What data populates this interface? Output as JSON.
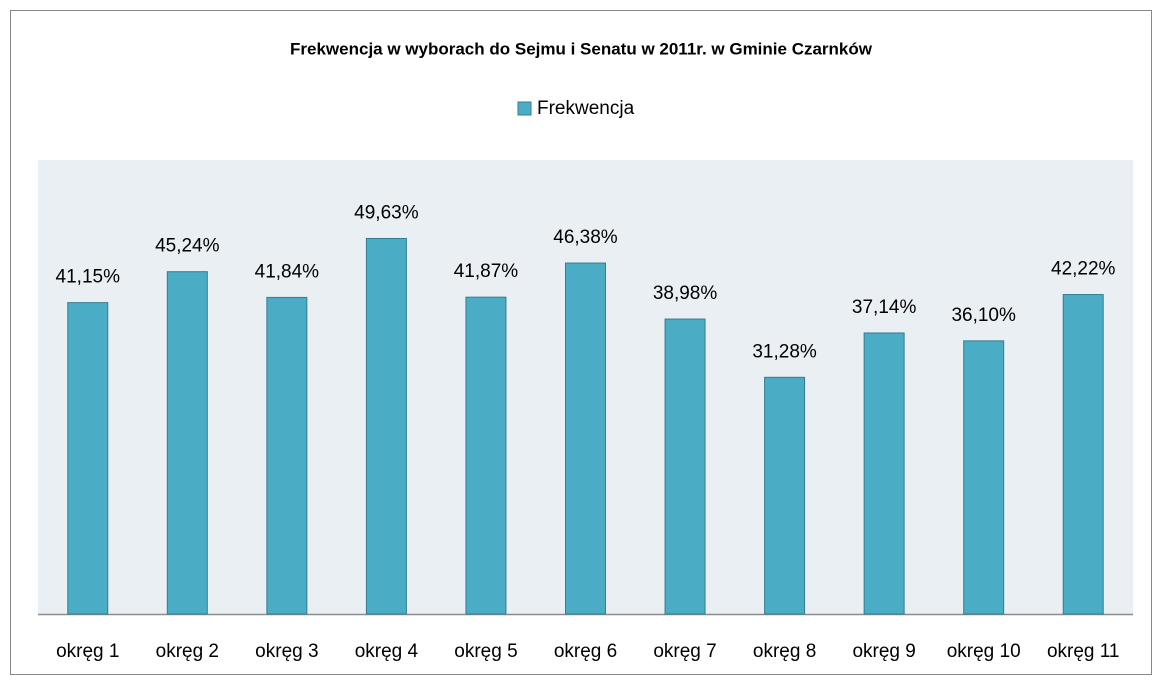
{
  "chart_data": {
    "type": "bar",
    "title": "Frekwencja w wyborach do Sejmu i Senatu w 2011r. w Gminie Czarnków",
    "categories": [
      "okręg 1",
      "okręg 2",
      "okręg 3",
      "okręg 4",
      "okręg 5",
      "okręg 6",
      "okręg 7",
      "okręg 8",
      "okręg 9",
      "okręg 10",
      "okręg 11"
    ],
    "series": [
      {
        "name": "Frekwencja",
        "color": "#4bacc6",
        "values": [
          41.15,
          45.24,
          41.84,
          49.63,
          41.87,
          46.38,
          38.98,
          31.28,
          37.14,
          36.1,
          42.22
        ],
        "value_labels": [
          "41,15%",
          "45,24%",
          "41,84%",
          "49,63%",
          "41,87%",
          "46,38%",
          "38,98%",
          "31,28%",
          "37,14%",
          "36,10%",
          "42,22%"
        ]
      }
    ],
    "ylim": [
      0,
      60
    ],
    "legend": "top"
  }
}
